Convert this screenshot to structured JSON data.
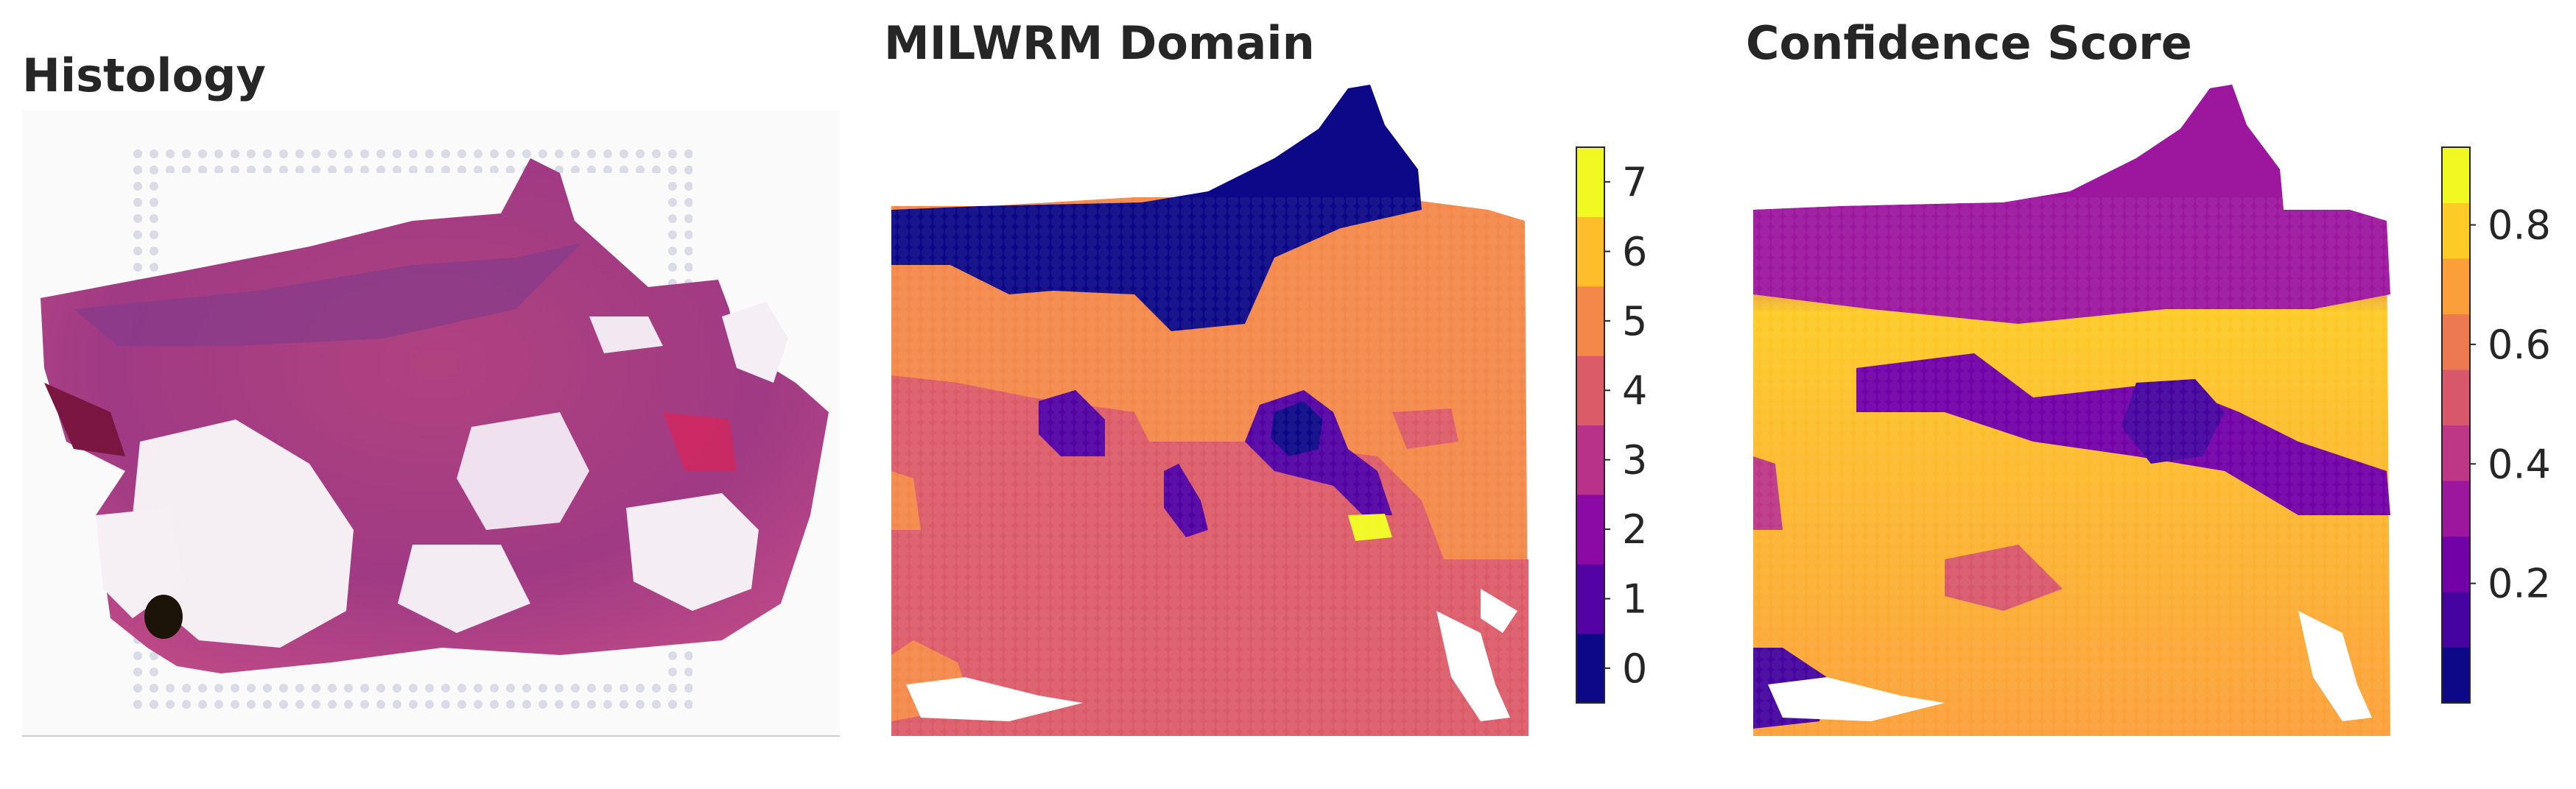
{
  "panels": {
    "histology": {
      "title": "Histology"
    },
    "domain": {
      "title": "MILWRM Domain"
    },
    "confidence": {
      "title": "Confidence Score"
    }
  },
  "chart_data": [
    {
      "type": "image",
      "title": "Histology"
    },
    {
      "type": "heatmap",
      "title": "MILWRM Domain",
      "colorbar": {
        "type": "discrete",
        "levels": [
          0,
          1,
          2,
          3,
          4,
          5,
          6,
          7
        ],
        "tick_labels": [
          "0",
          "1",
          "2",
          "3",
          "4",
          "5",
          "6",
          "7"
        ],
        "colors": [
          "#0d0887",
          "#5302a3",
          "#8b0aa5",
          "#b83289",
          "#db5c68",
          "#f48849",
          "#febd2a",
          "#f0f921"
        ]
      },
      "regions": [
        {
          "domain": 5,
          "description": "dominant"
        },
        {
          "domain": 4,
          "description": "dominant"
        },
        {
          "domain": 0
        },
        {
          "domain": 1
        },
        {
          "domain": 2
        },
        {
          "domain": 7
        }
      ]
    },
    {
      "type": "heatmap",
      "title": "Confidence Score",
      "colorbar": {
        "type": "continuous",
        "colormap": "plasma",
        "range": [
          0.0,
          0.93
        ],
        "ticks": [
          0.2,
          0.4,
          0.6,
          0.8
        ],
        "tick_labels": [
          "0.2",
          "0.4",
          "0.6",
          "0.8"
        ],
        "colors": [
          "#0d0887",
          "#46039f",
          "#7201a8",
          "#9c179e",
          "#bd3786",
          "#d8576b",
          "#ed7953",
          "#fb9f3a",
          "#fdca26",
          "#f0f921"
        ]
      }
    }
  ]
}
